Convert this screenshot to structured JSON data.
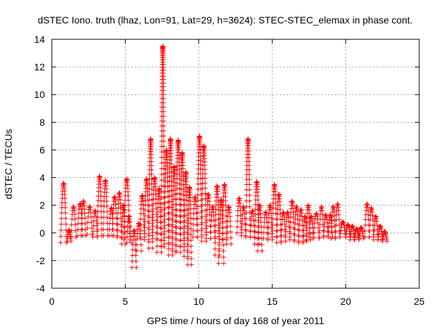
{
  "chart_data": {
    "type": "scatter",
    "title": "dSTEC Iono. truth (lhaz, Lon=91, Lat=29, h=3624): STEC-STEC_elemax in phase cont.",
    "xlabel": "GPS time / hours of day 168 of year 2011",
    "ylabel": "dSTEC  / TECUs",
    "xlim": [
      0,
      25
    ],
    "ylim": [
      -4,
      14
    ],
    "x_ticks": [
      0,
      5,
      10,
      15,
      20,
      25
    ],
    "y_ticks": [
      -4,
      -2,
      0,
      2,
      4,
      6,
      8,
      10,
      12,
      14
    ],
    "grid": true,
    "marker": "+",
    "series": [
      {
        "color": "#ff0000",
        "arcs": [
          {
            "x0": 0.6,
            "x1": 1.0,
            "ymin": -0.7,
            "ymax": 3.6
          },
          {
            "x0": 1.05,
            "x1": 1.3,
            "ymin": -0.6,
            "ymax": 0.2
          },
          {
            "x0": 1.3,
            "x1": 1.65,
            "ymin": -0.3,
            "ymax": 1.9
          },
          {
            "x0": 1.75,
            "x1": 2.1,
            "ymin": -0.2,
            "ymax": 2.1
          },
          {
            "x0": 2.0,
            "x1": 2.3,
            "ymin": -0.2,
            "ymax": 2.3
          },
          {
            "x0": 2.4,
            "x1": 2.75,
            "ymin": -0.1,
            "ymax": 1.9
          },
          {
            "x0": 2.8,
            "x1": 3.1,
            "ymin": -0.3,
            "ymax": 1.6
          },
          {
            "x0": 3.1,
            "x1": 3.4,
            "ymin": -0.2,
            "ymax": 4.1
          },
          {
            "x0": 3.5,
            "x1": 3.8,
            "ymin": -0.2,
            "ymax": 3.8
          },
          {
            "x0": 3.9,
            "x1": 4.2,
            "ymin": -0.2,
            "ymax": 1.8
          },
          {
            "x0": 4.1,
            "x1": 4.45,
            "ymin": -0.2,
            "ymax": 2.6
          },
          {
            "x0": 4.45,
            "x1": 4.75,
            "ymin": -0.3,
            "ymax": 2.9
          },
          {
            "x0": 4.75,
            "x1": 5.0,
            "ymin": -0.8,
            "ymax": 2.0
          },
          {
            "x0": 4.9,
            "x1": 5.3,
            "ymin": -0.5,
            "ymax": 3.9
          },
          {
            "x0": 5.1,
            "x1": 5.4,
            "ymin": -0.7,
            "ymax": 1.2
          },
          {
            "x0": 5.45,
            "x1": 5.75,
            "ymin": -2.5,
            "ymax": 0.2
          },
          {
            "x0": 5.75,
            "x1": 6.1,
            "ymin": -1.3,
            "ymax": 0.7
          },
          {
            "x0": 6.0,
            "x1": 6.3,
            "ymin": -0.3,
            "ymax": 2.7
          },
          {
            "x0": 6.3,
            "x1": 6.6,
            "ymin": -0.5,
            "ymax": 3.9
          },
          {
            "x0": 6.6,
            "x1": 6.85,
            "ymin": -1.1,
            "ymax": 6.8
          },
          {
            "x0": 6.85,
            "x1": 7.15,
            "ymin": -0.4,
            "ymax": 4.0
          },
          {
            "x0": 7.15,
            "x1": 7.45,
            "ymin": -1.4,
            "ymax": 3.2
          },
          {
            "x0": 7.45,
            "x1": 7.65,
            "ymin": -1.0,
            "ymax": 13.5
          },
          {
            "x0": 7.65,
            "x1": 7.95,
            "ymin": -0.8,
            "ymax": 6.0
          },
          {
            "x0": 7.95,
            "x1": 8.2,
            "ymin": -1.6,
            "ymax": 6.8
          },
          {
            "x0": 8.2,
            "x1": 8.45,
            "ymin": -1.3,
            "ymax": 4.8
          },
          {
            "x0": 8.45,
            "x1": 8.75,
            "ymin": -1.4,
            "ymax": 6.7
          },
          {
            "x0": 8.75,
            "x1": 9.0,
            "ymin": -1.0,
            "ymax": 5.8
          },
          {
            "x0": 9.0,
            "x1": 9.25,
            "ymin": -1.7,
            "ymax": 4.4
          },
          {
            "x0": 9.25,
            "x1": 9.5,
            "ymin": -2.3,
            "ymax": 3.3
          },
          {
            "x0": 9.6,
            "x1": 9.9,
            "ymin": -0.3,
            "ymax": 2.6
          },
          {
            "x0": 9.9,
            "x1": 10.2,
            "ymin": -0.3,
            "ymax": 7.0
          },
          {
            "x0": 10.2,
            "x1": 10.5,
            "ymin": -0.6,
            "ymax": 6.3
          },
          {
            "x0": 10.5,
            "x1": 10.8,
            "ymin": -0.4,
            "ymax": 2.8
          },
          {
            "x0": 10.8,
            "x1": 11.1,
            "ymin": -0.4,
            "ymax": 1.9
          },
          {
            "x0": 11.1,
            "x1": 11.4,
            "ymin": -1.6,
            "ymax": 3.4
          },
          {
            "x0": 11.35,
            "x1": 11.7,
            "ymin": -2.2,
            "ymax": 2.4
          },
          {
            "x0": 11.6,
            "x1": 11.9,
            "ymin": -0.5,
            "ymax": 3.5
          },
          {
            "x0": 11.9,
            "x1": 12.2,
            "ymin": -0.8,
            "ymax": 1.9
          },
          {
            "x0": 12.6,
            "x1": 12.9,
            "ymin": 0.0,
            "ymax": 2.5
          },
          {
            "x0": 12.9,
            "x1": 13.2,
            "ymin": -0.2,
            "ymax": 1.9
          },
          {
            "x0": 13.2,
            "x1": 13.5,
            "ymin": -0.3,
            "ymax": 6.8
          },
          {
            "x0": 13.5,
            "x1": 13.8,
            "ymin": -0.3,
            "ymax": 1.6
          },
          {
            "x0": 13.8,
            "x1": 14.1,
            "ymin": -0.8,
            "ymax": 3.7
          },
          {
            "x0": 14.0,
            "x1": 14.3,
            "ymin": -1.3,
            "ymax": 2.0
          },
          {
            "x0": 14.4,
            "x1": 14.7,
            "ymin": -0.4,
            "ymax": 1.5
          },
          {
            "x0": 14.7,
            "x1": 15.0,
            "ymin": -0.5,
            "ymax": 2.0
          },
          {
            "x0": 15.0,
            "x1": 15.3,
            "ymin": -0.3,
            "ymax": 3.5
          },
          {
            "x0": 15.3,
            "x1": 15.6,
            "ymin": -0.7,
            "ymax": 2.8
          },
          {
            "x0": 15.6,
            "x1": 15.9,
            "ymin": -0.6,
            "ymax": 1.5
          },
          {
            "x0": 15.9,
            "x1": 16.2,
            "ymin": -0.3,
            "ymax": 1.5
          },
          {
            "x0": 16.2,
            "x1": 16.5,
            "ymin": -0.5,
            "ymax": 2.3
          },
          {
            "x0": 16.5,
            "x1": 16.8,
            "ymin": -0.6,
            "ymax": 1.9
          },
          {
            "x0": 16.8,
            "x1": 17.1,
            "ymin": -0.7,
            "ymax": 1.7
          },
          {
            "x0": 17.1,
            "x1": 17.35,
            "ymin": -0.6,
            "ymax": 1.2
          },
          {
            "x0": 17.3,
            "x1": 17.6,
            "ymin": -0.5,
            "ymax": 2.0
          },
          {
            "x0": 17.5,
            "x1": 17.8,
            "ymin": -0.3,
            "ymax": 1.2
          },
          {
            "x0": 17.8,
            "x1": 18.2,
            "ymin": -0.4,
            "ymax": 1.4
          },
          {
            "x0": 18.2,
            "x1": 18.5,
            "ymin": -0.3,
            "ymax": 1.9
          },
          {
            "x0": 18.5,
            "x1": 18.8,
            "ymin": -0.2,
            "ymax": 1.3
          },
          {
            "x0": 18.8,
            "x1": 19.1,
            "ymin": -0.3,
            "ymax": 1.3
          },
          {
            "x0": 19.0,
            "x1": 19.3,
            "ymin": -0.4,
            "ymax": 1.9
          },
          {
            "x0": 19.3,
            "x1": 19.6,
            "ymin": -0.3,
            "ymax": 2.1
          },
          {
            "x0": 19.6,
            "x1": 20.0,
            "ymin": -0.3,
            "ymax": 0.8
          },
          {
            "x0": 20.0,
            "x1": 20.3,
            "ymin": -0.3,
            "ymax": 0.6
          },
          {
            "x0": 20.3,
            "x1": 20.6,
            "ymin": -0.5,
            "ymax": 0.5
          },
          {
            "x0": 20.6,
            "x1": 20.9,
            "ymin": -0.5,
            "ymax": 0.3
          },
          {
            "x0": 20.9,
            "x1": 21.2,
            "ymin": -0.4,
            "ymax": 0.4
          },
          {
            "x0": 21.3,
            "x1": 21.6,
            "ymin": -0.3,
            "ymax": 2.1
          },
          {
            "x0": 21.6,
            "x1": 21.9,
            "ymin": -0.3,
            "ymax": 1.8
          },
          {
            "x0": 21.9,
            "x1": 22.2,
            "ymin": -0.5,
            "ymax": 1.2
          },
          {
            "x0": 22.2,
            "x1": 22.5,
            "ymin": -0.5,
            "ymax": 0.5
          },
          {
            "x0": 22.5,
            "x1": 22.8,
            "ymin": -0.6,
            "ymax": 0.1
          }
        ]
      }
    ]
  }
}
